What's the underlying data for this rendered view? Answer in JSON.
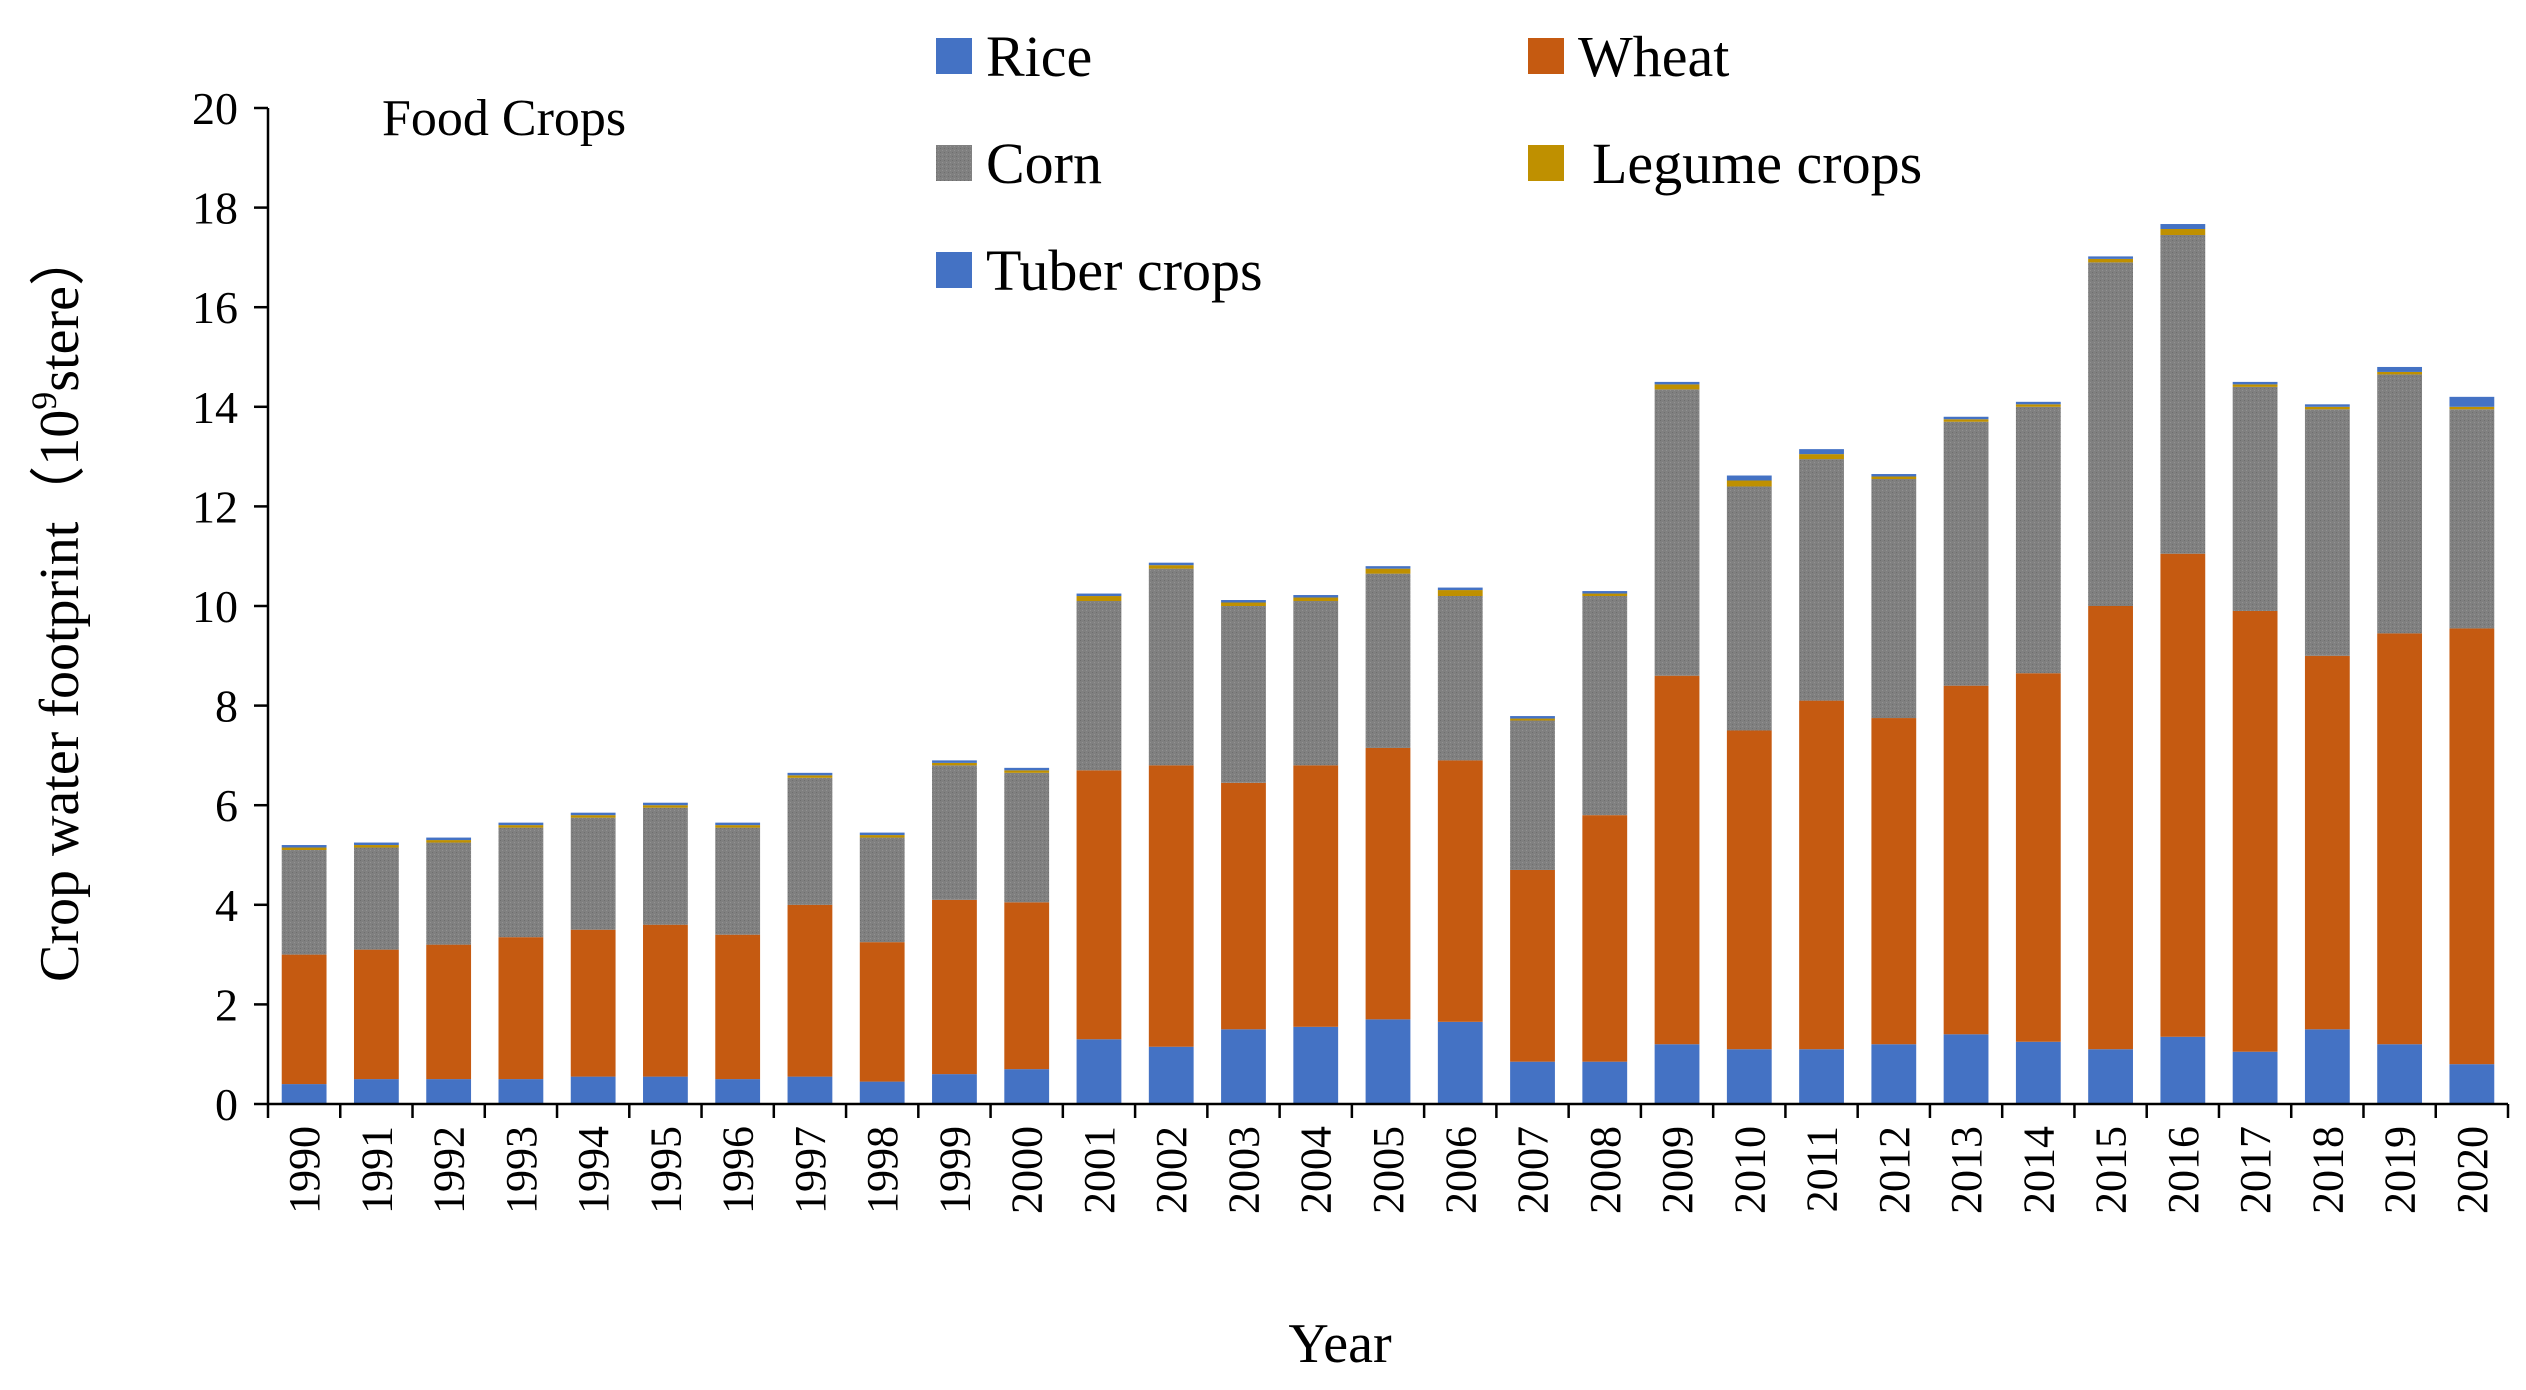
{
  "chart_data": {
    "type": "bar",
    "stacked": true,
    "title": "Food Crops",
    "xlabel": "Year",
    "ylabel": "Crop water footprint（10⁹stere）",
    "ylabel_parts": {
      "before": "Crop water footprint（10",
      "sup": "9",
      "after": "stere）"
    },
    "ylim": [
      0,
      20
    ],
    "yticks": [
      "0",
      "2",
      "4",
      "6",
      "8",
      "10",
      "12",
      "14",
      "16",
      "18",
      "20"
    ],
    "categories": [
      "1990",
      "1991",
      "1992",
      "1993",
      "1994",
      "1995",
      "1996",
      "1997",
      "1998",
      "1999",
      "2000",
      "2001",
      "2002",
      "2003",
      "2004",
      "2005",
      "2006",
      "2007",
      "2008",
      "2009",
      "2010",
      "2011",
      "2012",
      "2013",
      "2014",
      "2015",
      "2016",
      "2017",
      "2018",
      "2019",
      "2020"
    ],
    "series": [
      {
        "name": "Rice",
        "color": "#4472C4",
        "values": [
          0.4,
          0.5,
          0.5,
          0.5,
          0.55,
          0.55,
          0.5,
          0.55,
          0.45,
          0.6,
          0.7,
          1.3,
          1.15,
          1.5,
          1.55,
          1.7,
          1.65,
          0.85,
          0.85,
          1.2,
          1.1,
          1.1,
          1.2,
          1.4,
          1.25,
          1.1,
          1.35,
          1.05,
          1.5,
          1.2,
          0.8
        ]
      },
      {
        "name": "Wheat",
        "color": "#C55A11",
        "values": [
          2.6,
          2.6,
          2.7,
          2.85,
          2.95,
          3.05,
          2.9,
          3.45,
          2.8,
          3.5,
          3.35,
          5.4,
          5.65,
          4.95,
          5.25,
          5.45,
          5.25,
          3.85,
          4.95,
          7.4,
          6.4,
          7.0,
          6.55,
          7.0,
          7.4,
          8.9,
          9.7,
          8.85,
          7.5,
          8.25,
          8.75
        ]
      },
      {
        "name": "Corn",
        "color": "#7F7F7F",
        "values": [
          2.1,
          2.05,
          2.05,
          2.2,
          2.25,
          2.35,
          2.15,
          2.55,
          2.1,
          2.7,
          2.6,
          3.4,
          3.95,
          3.55,
          3.3,
          3.5,
          3.3,
          3.0,
          4.4,
          5.75,
          4.9,
          4.85,
          4.8,
          5.3,
          5.35,
          6.9,
          6.4,
          4.5,
          4.95,
          5.2,
          4.4
        ]
      },
      {
        "name": "Legume crops",
        "color": "#BF9000",
        "values": [
          0.05,
          0.05,
          0.05,
          0.05,
          0.05,
          0.05,
          0.05,
          0.05,
          0.05,
          0.05,
          0.05,
          0.1,
          0.07,
          0.07,
          0.07,
          0.1,
          0.12,
          0.04,
          0.05,
          0.1,
          0.12,
          0.1,
          0.05,
          0.05,
          0.05,
          0.07,
          0.12,
          0.05,
          0.05,
          0.05,
          0.05
        ]
      },
      {
        "name": "Tuber crops",
        "color": "#4472C4",
        "values": [
          0.05,
          0.05,
          0.05,
          0.05,
          0.05,
          0.05,
          0.05,
          0.05,
          0.05,
          0.05,
          0.05,
          0.05,
          0.05,
          0.05,
          0.05,
          0.05,
          0.05,
          0.05,
          0.05,
          0.05,
          0.1,
          0.1,
          0.05,
          0.05,
          0.05,
          0.05,
          0.1,
          0.05,
          0.05,
          0.1,
          0.2
        ]
      }
    ]
  }
}
